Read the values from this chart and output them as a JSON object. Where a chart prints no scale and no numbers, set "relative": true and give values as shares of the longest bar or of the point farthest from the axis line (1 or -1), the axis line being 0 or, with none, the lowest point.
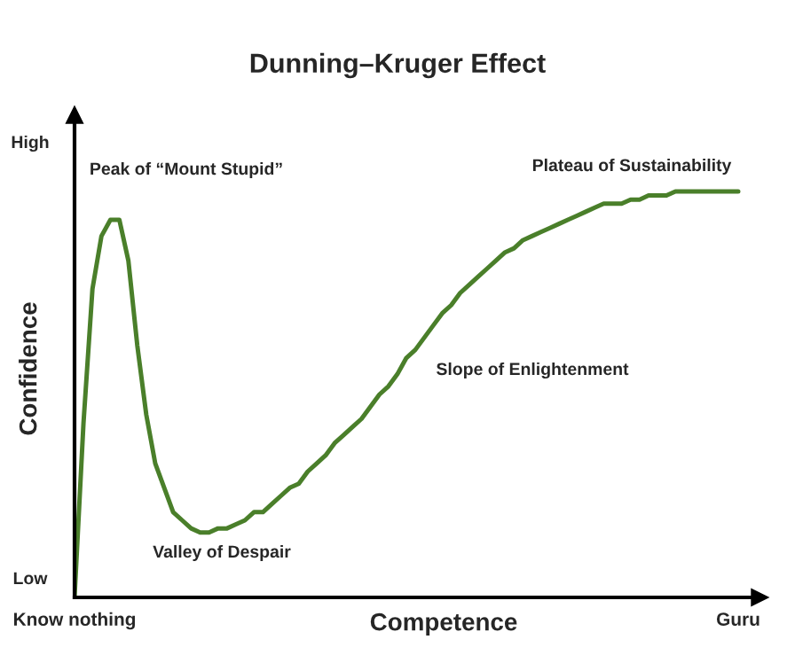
{
  "chart_data": {
    "type": "line",
    "title": "Dunning–Kruger Effect",
    "xlabel": "Competence",
    "ylabel": "Confidence",
    "relative": true,
    "categories": [
      "Know nothing",
      null,
      null,
      null,
      null,
      null,
      null,
      null,
      null,
      null,
      null,
      null,
      null,
      null,
      null,
      null,
      null,
      null,
      null,
      null,
      null,
      null,
      null,
      null,
      null,
      null,
      null,
      null,
      null,
      null,
      null,
      null,
      null,
      null,
      null,
      null,
      null,
      null,
      null,
      null,
      null,
      null,
      null,
      null,
      null,
      null,
      null,
      null,
      null,
      null,
      null,
      null,
      null,
      null,
      null,
      null,
      null,
      null,
      null,
      null,
      null,
      null,
      null,
      null,
      null,
      null,
      null,
      null,
      null,
      null,
      null,
      null,
      null,
      null,
      "Guru"
    ],
    "series": [
      {
        "color": "#4a7f2a",
        "values": [
          0,
          0.43,
          0.76,
          0.89,
          0.93,
          0.93,
          0.83,
          0.62,
          0.45,
          0.33,
          0.27,
          0.21,
          0.19,
          0.17,
          0.16,
          0.16,
          0.17,
          0.17,
          0.18,
          0.19,
          0.21,
          0.21,
          0.23,
          0.25,
          0.27,
          0.28,
          0.31,
          0.33,
          0.35,
          0.38,
          0.4,
          0.42,
          0.44,
          0.47,
          0.5,
          0.52,
          0.55,
          0.59,
          0.61,
          0.64,
          0.67,
          0.7,
          0.72,
          0.75,
          0.77,
          0.79,
          0.81,
          0.83,
          0.85,
          0.86,
          0.88,
          0.89,
          0.9,
          0.91,
          0.92,
          0.93,
          0.94,
          0.95,
          0.96,
          0.97,
          0.97,
          0.97,
          0.98,
          0.98,
          0.99,
          0.99,
          0.99,
          1,
          1,
          1,
          1,
          1,
          1,
          1,
          1
        ]
      }
    ],
    "annotations": [
      "High",
      "Low",
      "Peak of “Mount Stupid”",
      "Valley of Despair",
      "Slope of Enlightenment",
      "Plateau of Sustainability"
    ],
    "grid": false,
    "legend": false,
    "marker": "none",
    "line_style": "solid"
  }
}
